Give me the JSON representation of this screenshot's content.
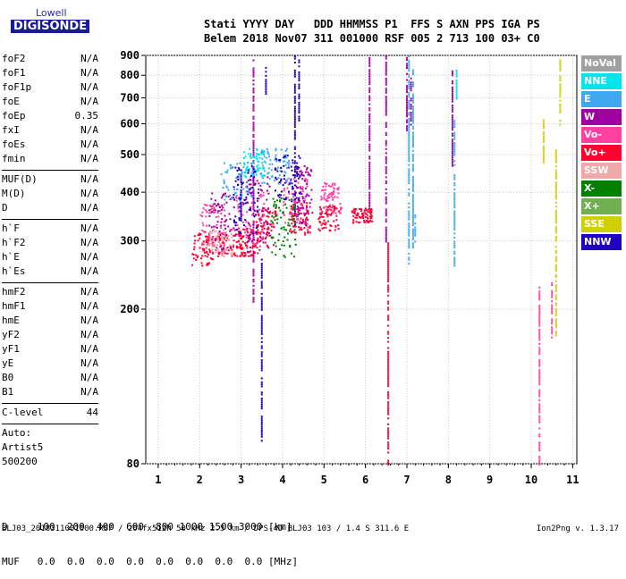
{
  "logo": {
    "line1": "Lowell",
    "line2": "DIGISONDE"
  },
  "header": {
    "row1": "Stati YYYY DAY   DDD HHMMSS P1  FFS S AXN PPS IGA PS",
    "row2": "Belem 2018 Nov07 311 001000 RSF 005 2 713 100 03+ C0"
  },
  "params": {
    "group1": [
      {
        "label": "foF2",
        "value": "N/A"
      },
      {
        "label": "foF1",
        "value": "N/A"
      },
      {
        "label": "foF1p",
        "value": "N/A"
      },
      {
        "label": "foE",
        "value": "N/A"
      },
      {
        "label": "foEp",
        "value": "0.35"
      },
      {
        "label": "fxI",
        "value": "N/A"
      },
      {
        "label": "foEs",
        "value": "N/A"
      },
      {
        "label": "fmin",
        "value": "N/A"
      }
    ],
    "group2": [
      {
        "label": "MUF(D)",
        "value": "N/A"
      },
      {
        "label": "M(D)",
        "value": "N/A"
      },
      {
        "label": "D",
        "value": "N/A"
      }
    ],
    "group3": [
      {
        "label": "h`F",
        "value": "N/A"
      },
      {
        "label": "h`F2",
        "value": "N/A"
      },
      {
        "label": "h`E",
        "value": "N/A"
      },
      {
        "label": "h`Es",
        "value": "N/A"
      }
    ],
    "group4": [
      {
        "label": "hmF2",
        "value": "N/A"
      },
      {
        "label": "hmF1",
        "value": "N/A"
      },
      {
        "label": "hmE",
        "value": "N/A"
      },
      {
        "label": "yF2",
        "value": "N/A"
      },
      {
        "label": "yF1",
        "value": "N/A"
      },
      {
        "label": "yE",
        "value": "N/A"
      },
      {
        "label": "B0",
        "value": "N/A"
      },
      {
        "label": "B1",
        "value": "N/A"
      }
    ],
    "clevel": {
      "label": "C-level",
      "value": "44"
    },
    "auto": [
      "Auto:",
      "Artist5",
      "500200"
    ]
  },
  "legend": [
    {
      "label": "NoVal",
      "color": "#a0a0a0"
    },
    {
      "label": "NNE",
      "color": "#00e5ee"
    },
    {
      "label": "E",
      "color": "#40a8f0"
    },
    {
      "label": "W",
      "color": "#a000a0"
    },
    {
      "label": "Vo-",
      "color": "#ff40a0"
    },
    {
      "label": "Vo+",
      "color": "#ff0030"
    },
    {
      "label": "SSW",
      "color": "#f0a8a8"
    },
    {
      "label": "X-",
      "color": "#008000"
    },
    {
      "label": "X+",
      "color": "#70b050"
    },
    {
      "label": "SSE",
      "color": "#d0d000"
    },
    {
      "label": "NNW",
      "color": "#2000c0"
    }
  ],
  "dtable": {
    "d_row": "D     100  200  400  600  800 1000 1500 3000 [km]",
    "muf_row": "MUF   0.0  0.0  0.0  0.0  0.0  0.0  0.0  0.0 [MHz]"
  },
  "footer": {
    "left": "BLJ03_2018311001000.RSF / 204fx512h 50 kHz 2.5 km / DPS-4D BLJ03 103 / 1.4 S 311.6 E",
    "right": "Ion2Png v. 1.3.17"
  },
  "chart_data": {
    "type": "scatter",
    "x_ticks": [
      "1",
      "2",
      "3",
      "4",
      "5",
      "6",
      "7",
      "8",
      "9",
      "10",
      "11"
    ],
    "y_ticks": [
      "80",
      "200",
      "300",
      "400",
      "500",
      "600",
      "700",
      "800",
      "900"
    ],
    "xlim": [
      0.7,
      11.1
    ],
    "ylim": [
      80,
      900
    ],
    "grid": true,
    "legend_position": "right",
    "traces": [
      {
        "series": "W",
        "x": [
          3.3,
          6.1,
          6.5,
          7.0,
          7.1,
          8.1
        ],
        "y": [
          [
            210,
            880
          ],
          [
            360,
            900
          ],
          [
            300,
            900
          ],
          [
            560,
            900
          ],
          [
            600,
            800
          ],
          [
            470,
            830
          ]
        ]
      },
      {
        "series": "NNW",
        "x": [
          3.5,
          3.5,
          3.6,
          4.3,
          4.4,
          3.0
        ],
        "y": [
          [
            90,
            270
          ],
          [
            510,
            520
          ],
          [
            720,
            860
          ],
          [
            330,
            900
          ],
          [
            600,
            880
          ],
          [
            340,
            460
          ]
        ]
      },
      {
        "series": "E",
        "x": [
          7.05,
          7.15,
          8.15,
          7.2
        ],
        "y": [
          [
            260,
            900
          ],
          [
            290,
            830
          ],
          [
            260,
            620
          ],
          [
            300,
            360
          ]
        ]
      },
      {
        "series": "NNE",
        "x": [
          8.2
        ],
        "y": [
          [
            700,
            830
          ]
        ]
      },
      {
        "series": "SSE",
        "x": [
          10.3,
          10.6,
          10.7
        ],
        "y": [
          [
            480,
            630
          ],
          [
            170,
            520
          ],
          [
            600,
            900
          ]
        ]
      },
      {
        "series": "Vo-",
        "x": [
          10.2,
          10.5
        ],
        "y": [
          [
            80,
            230
          ],
          [
            170,
            240
          ]
        ]
      },
      {
        "series": "Vo+",
        "x": [
          6.55
        ],
        "y": [
          [
            80,
            300
          ]
        ]
      }
    ],
    "clusters": [
      {
        "series": "Vo+",
        "xc": 2.05,
        "yc": 290,
        "dx": 0.25,
        "dy": 30
      },
      {
        "series": "Vo+",
        "xc": 2.7,
        "yc": 295,
        "dx": 0.35,
        "dy": 20
      },
      {
        "series": "Vo+",
        "xc": 3.15,
        "yc": 300,
        "dx": 0.25,
        "dy": 25
      },
      {
        "series": "Vo+",
        "xc": 3.6,
        "yc": 330,
        "dx": 0.25,
        "dy": 40
      },
      {
        "series": "Vo+",
        "xc": 4.4,
        "yc": 345,
        "dx": 0.25,
        "dy": 35
      },
      {
        "series": "Vo+",
        "xc": 5.1,
        "yc": 345,
        "dx": 0.25,
        "dy": 25
      },
      {
        "series": "Vo+",
        "xc": 5.9,
        "yc": 350,
        "dx": 0.25,
        "dy": 15
      },
      {
        "series": "Vo-",
        "xc": 2.3,
        "yc": 330,
        "dx": 0.3,
        "dy": 45
      },
      {
        "series": "Vo-",
        "xc": 3.2,
        "yc": 345,
        "dx": 0.35,
        "dy": 60
      },
      {
        "series": "Vo-",
        "xc": 4.3,
        "yc": 380,
        "dx": 0.3,
        "dy": 60
      },
      {
        "series": "Vo-",
        "xc": 5.15,
        "yc": 390,
        "dx": 0.25,
        "dy": 35
      },
      {
        "series": "W",
        "xc": 2.5,
        "yc": 340,
        "dx": 0.35,
        "dy": 60
      },
      {
        "series": "W",
        "xc": 3.4,
        "yc": 360,
        "dx": 0.3,
        "dy": 80
      },
      {
        "series": "W",
        "xc": 4.5,
        "yc": 400,
        "dx": 0.2,
        "dy": 70
      },
      {
        "series": "E",
        "xc": 2.9,
        "yc": 430,
        "dx": 0.4,
        "dy": 50
      },
      {
        "series": "E",
        "xc": 3.8,
        "yc": 470,
        "dx": 0.35,
        "dy": 50
      },
      {
        "series": "X-",
        "xc": 4.0,
        "yc": 330,
        "dx": 0.3,
        "dy": 60
      },
      {
        "series": "SSW",
        "xc": 2.5,
        "yc": 300,
        "dx": 0.3,
        "dy": 25
      },
      {
        "series": "NNE",
        "xc": 3.3,
        "yc": 480,
        "dx": 0.25,
        "dy": 40
      },
      {
        "series": "NNW",
        "xc": 3.1,
        "yc": 390,
        "dx": 0.3,
        "dy": 80
      },
      {
        "series": "NNW",
        "xc": 4.1,
        "yc": 440,
        "dx": 0.3,
        "dy": 60
      }
    ]
  }
}
